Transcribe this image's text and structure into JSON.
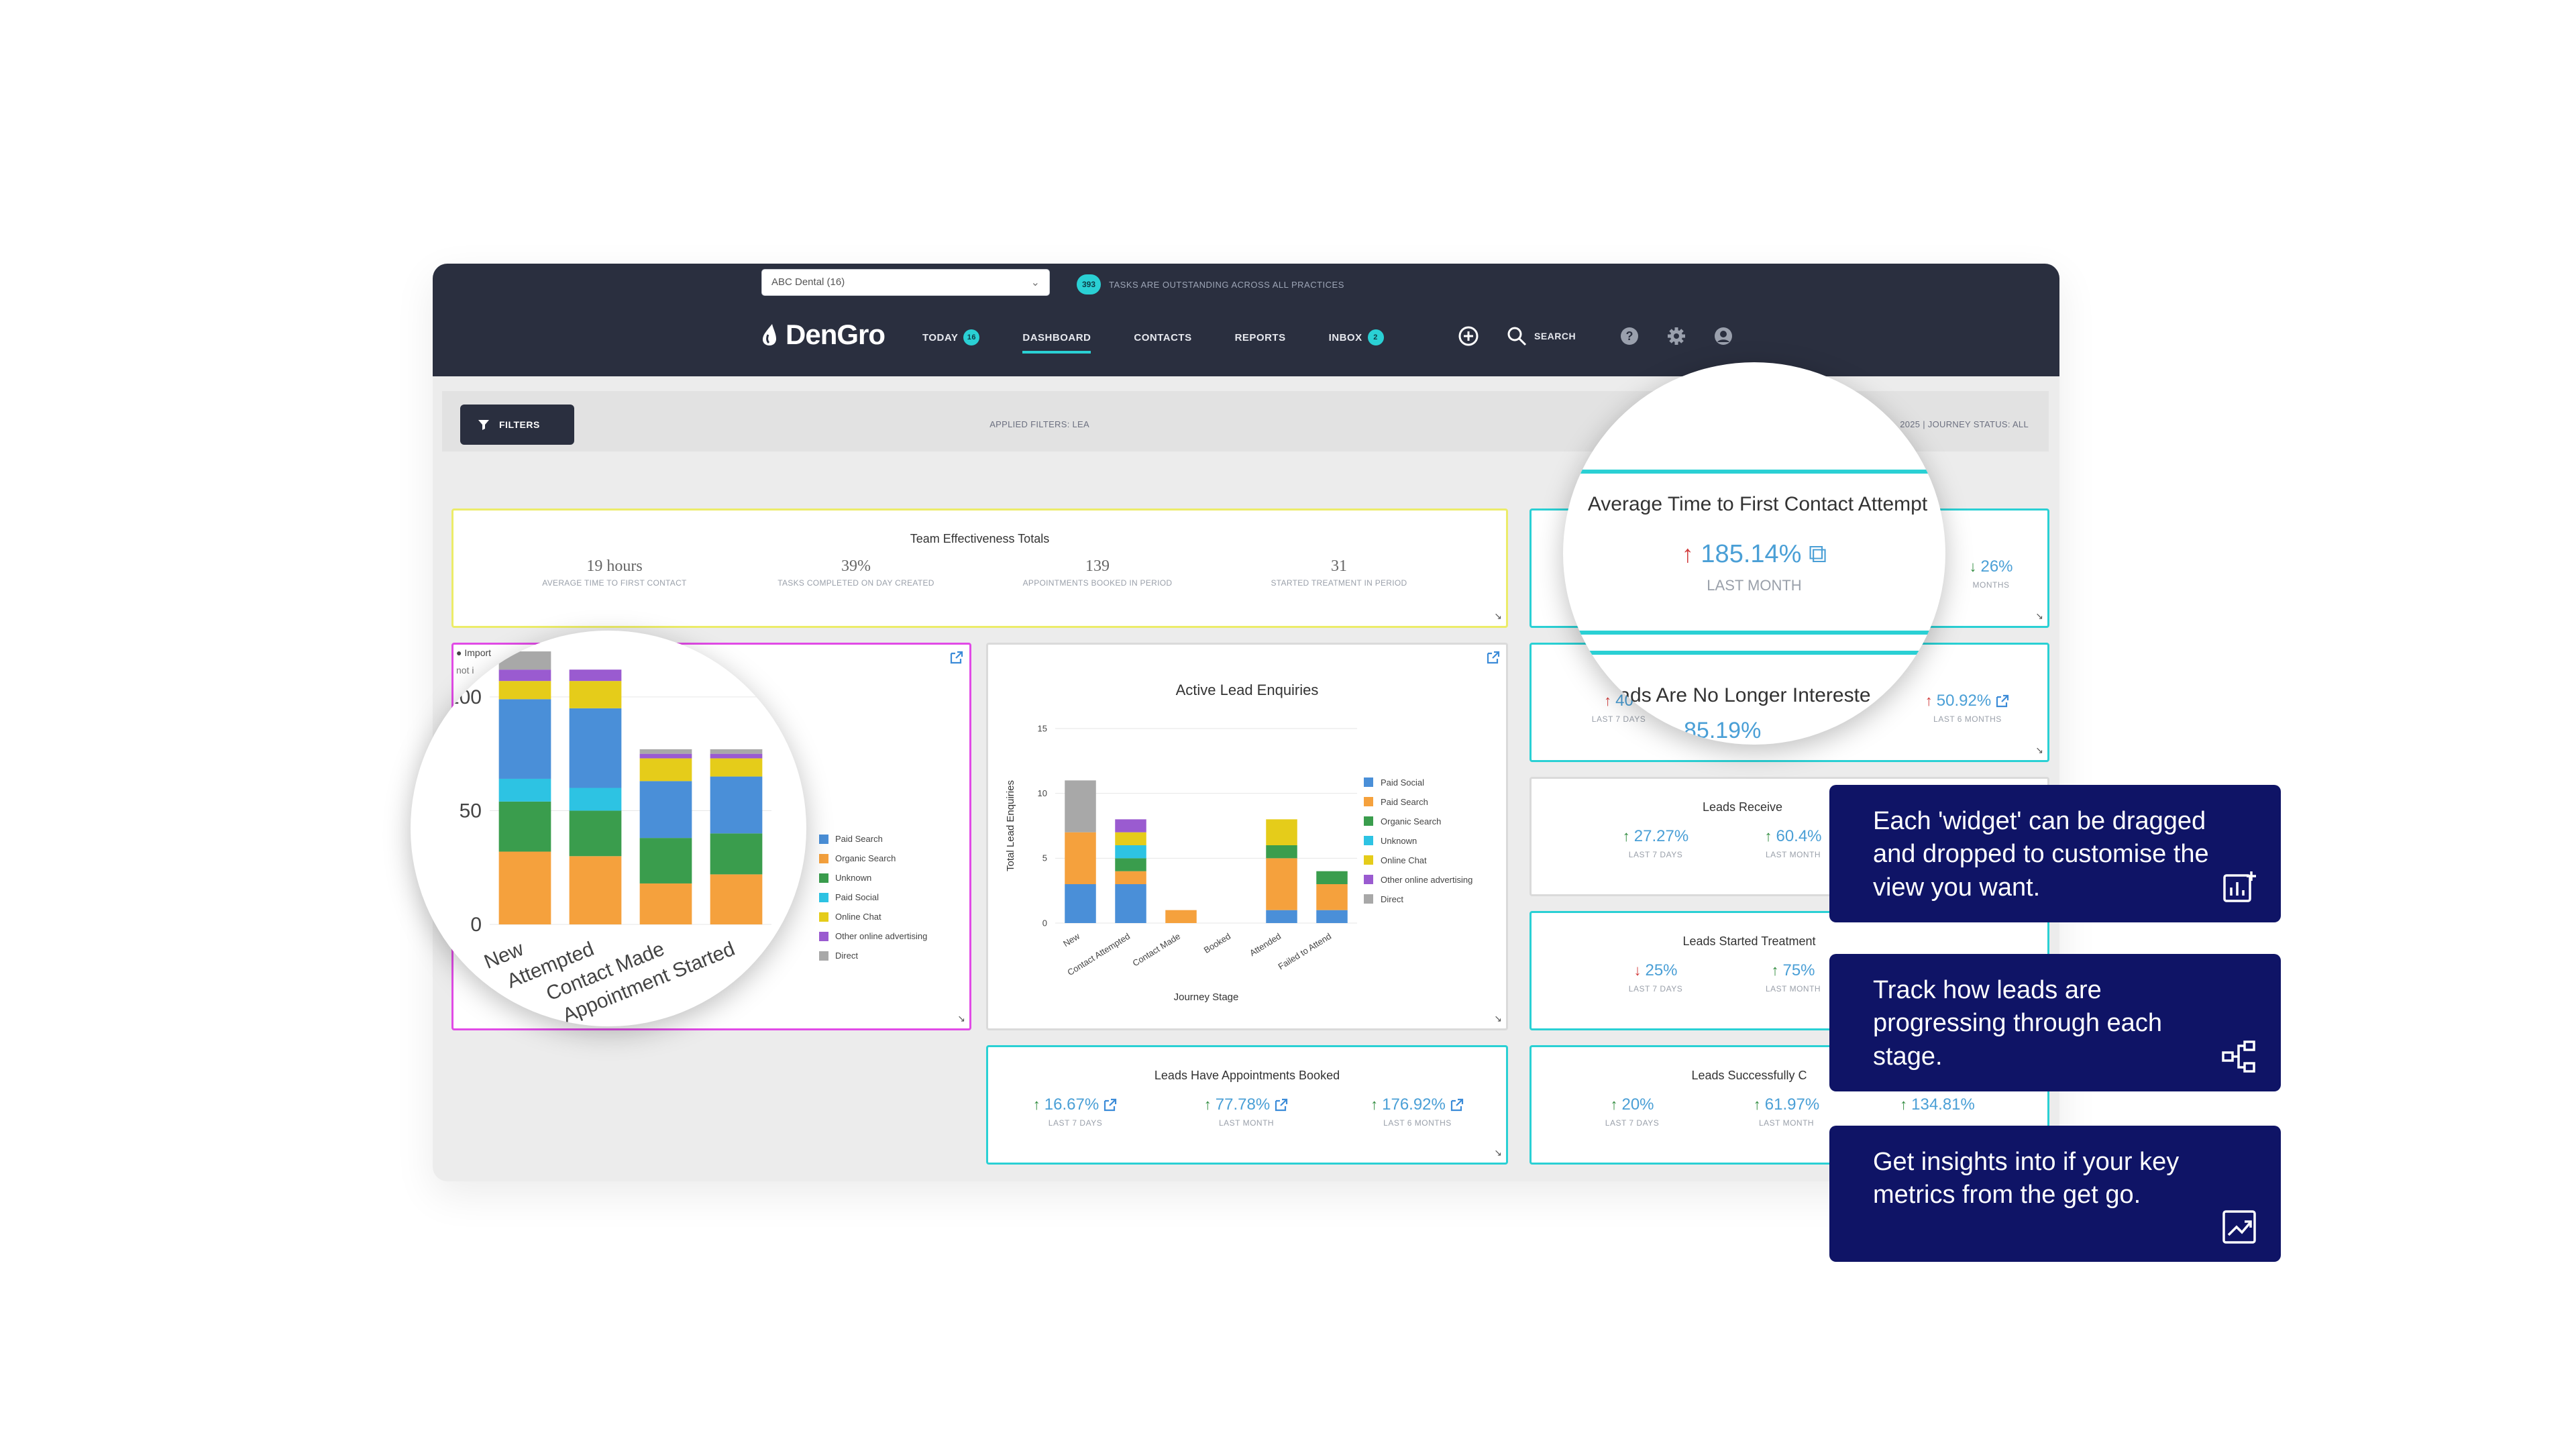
{
  "topbar": {
    "practice_value": "ABC Dental (16)",
    "tasks_count": "393",
    "tasks_text": "TASKS ARE OUTSTANDING ACROSS ALL PRACTICES",
    "brand": "DenGro",
    "nav": [
      {
        "label": "TODAY",
        "badge": "16"
      },
      {
        "label": "DASHBOARD",
        "badge": ""
      },
      {
        "label": "CONTACTS",
        "badge": ""
      },
      {
        "label": "REPORTS",
        "badge": ""
      },
      {
        "label": "INBOX",
        "badge": "2"
      }
    ],
    "search_label": "SEARCH"
  },
  "filterbar": {
    "filters_label": "FILTERS",
    "applied_left": "APPLIED FILTERS: LEA",
    "applied_right": "2025 | JOURNEY STATUS: ALL"
  },
  "team": {
    "title": "Team Effectiveness Totals",
    "metrics": [
      {
        "value": "19 hours",
        "label": "AVERAGE TIME TO FIRST CONTACT"
      },
      {
        "value": "39%",
        "label": "TASKS COMPLETED ON DAY CREATED"
      },
      {
        "value": "139",
        "label": "APPOINTMENTS BOOKED IN PERIOD"
      },
      {
        "value": "31",
        "label": "STARTED TREATMENT IN PERIOD"
      }
    ]
  },
  "avg_time": {
    "title": "Average Time to First Contact Attempt",
    "center_value": "185.14%",
    "center_label": "LAST MONTH",
    "right_value": "26%",
    "right_label": "MONTHS"
  },
  "no_longer": {
    "title": "Leads Are No Longer Intereste",
    "left_value": "40",
    "left_label": "LAST 7 DAYS",
    "mid_value": "85.19%",
    "right_value": "50.92%",
    "right_label": "LAST 6 MONTHS"
  },
  "leads_received": {
    "title": "Leads Receive",
    "m1_value": "27.27%",
    "m1_label": "LAST 7 DAYS",
    "m2_value": "60.4%",
    "m2_label": "LAST MONTH"
  },
  "leads_started": {
    "title": "Leads Started Treatment",
    "m1_value": "25%",
    "m1_label": "LAST 7 DAYS",
    "m2_value": "75%",
    "m2_label": "LAST MONTH"
  },
  "appointments": {
    "title": "Leads Have Appointments Booked",
    "m1_value": "16.67%",
    "m1_label": "LAST 7 DAYS",
    "m2_value": "77.78%",
    "m2_label": "LAST MONTH",
    "m3_value": "176.92%",
    "m3_label": "LAST 6 MONTHS"
  },
  "successful": {
    "title": "Leads Successfully C",
    "m1_value": "20%",
    "m1_label": "LAST 7 DAYS",
    "m2_value": "61.97%",
    "m2_label": "LAST MONTH",
    "m3_value": "134.81%"
  },
  "pink_card": {
    "note": "Import",
    "note2": "not i",
    "legend": [
      "Paid Search",
      "Organic Search",
      "Unknown",
      "Paid Social",
      "Online Chat",
      "Other online advertising",
      "Direct"
    ]
  },
  "callouts": [
    {
      "text": "Each 'widget' can be dragged and dropped to customise the view you want.",
      "icon": "chart-add-icon"
    },
    {
      "text": "Track how leads are progressing through each stage.",
      "icon": "flow-icon"
    },
    {
      "text": "Get insights into if your key metrics from the get go.",
      "icon": "trend-icon"
    }
  ],
  "colors": {
    "paid_social": "#4a8fd8",
    "paid_search": "#f5a13d",
    "organic_search": "#3a9d4d",
    "unknown": "#2dc3e3",
    "online_chat": "#e5cc1a",
    "other_online": "#9a5bd0",
    "direct": "#a8a8a8"
  },
  "chart_data": [
    {
      "type": "bar",
      "stacked": true,
      "title": "Active Lead Enquiries",
      "xlabel": "Journey Stage",
      "ylabel": "Total Lead Enquiries",
      "ylim": [
        0,
        15
      ],
      "yticks": [
        0,
        5,
        10,
        15
      ],
      "categories": [
        "New",
        "Contact Attempted",
        "Contact Made",
        "Booked",
        "Attended",
        "Failed to Attend"
      ],
      "series": [
        {
          "name": "Paid Social",
          "values": [
            3,
            3,
            0,
            0,
            1,
            1
          ]
        },
        {
          "name": "Paid Search",
          "values": [
            4,
            1,
            1,
            0,
            4,
            2
          ]
        },
        {
          "name": "Organic Search",
          "values": [
            0,
            1,
            0,
            0,
            1,
            1
          ]
        },
        {
          "name": "Unknown",
          "values": [
            0,
            1,
            0,
            0,
            0,
            0
          ]
        },
        {
          "name": "Online Chat",
          "values": [
            0,
            1,
            0,
            0,
            2,
            0
          ]
        },
        {
          "name": "Other online advertising",
          "values": [
            0,
            1,
            0,
            0,
            0,
            0
          ]
        },
        {
          "name": "Direct",
          "values": [
            4,
            0,
            0,
            0,
            0,
            0
          ]
        }
      ],
      "legend_position": "right"
    },
    {
      "type": "bar",
      "stacked": true,
      "ylim": [
        0,
        115
      ],
      "yticks": [
        0,
        50,
        100
      ],
      "categories": [
        "New",
        "Attempted",
        "Contact Made",
        "Appointment Started"
      ],
      "series": [
        {
          "name": "Paid Search",
          "values": [
            32,
            30,
            18,
            22
          ]
        },
        {
          "name": "Organic Search",
          "values": [
            22,
            20,
            20,
            18
          ]
        },
        {
          "name": "Unknown",
          "values": [
            10,
            10,
            0,
            0
          ]
        },
        {
          "name": "Paid Social",
          "values": [
            35,
            35,
            25,
            25
          ]
        },
        {
          "name": "Online Chat",
          "values": [
            8,
            12,
            10,
            8
          ]
        },
        {
          "name": "Other online advertising",
          "values": [
            5,
            5,
            2,
            2
          ]
        },
        {
          "name": "Direct",
          "values": [
            8,
            0,
            2,
            2
          ]
        }
      ],
      "legend_position": "right"
    }
  ]
}
